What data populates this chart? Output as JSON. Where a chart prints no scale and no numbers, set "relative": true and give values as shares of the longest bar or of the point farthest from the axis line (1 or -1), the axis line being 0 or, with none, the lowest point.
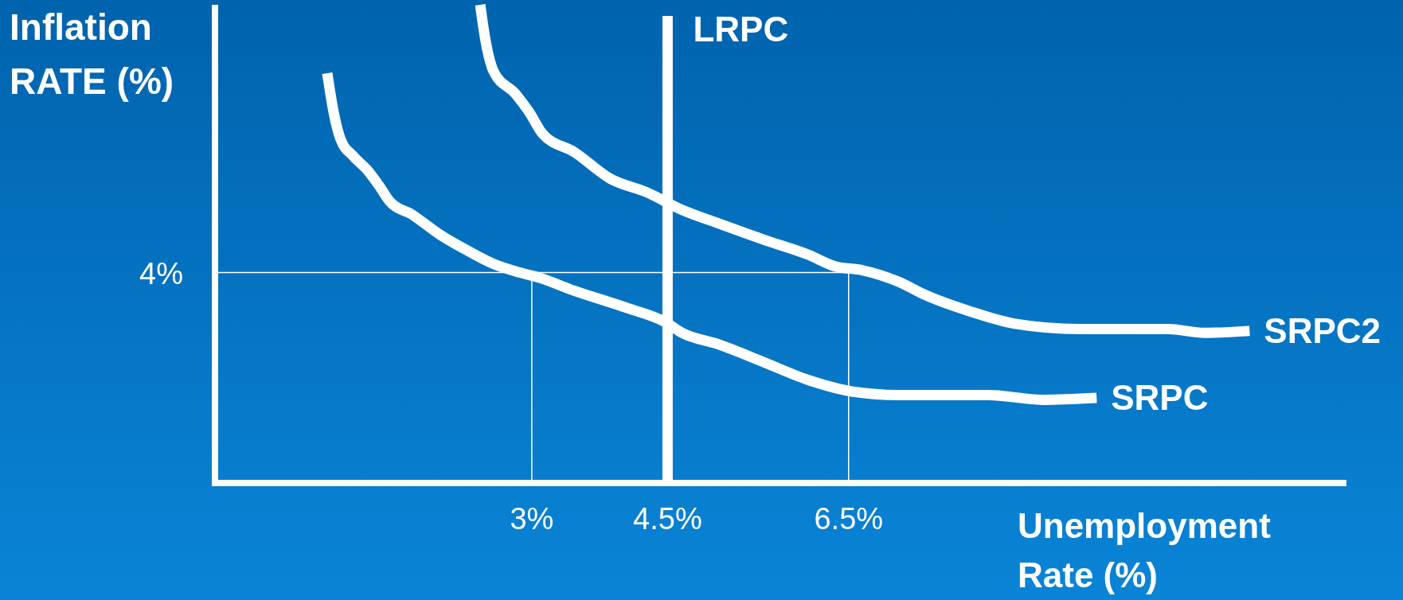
{
  "chart_data": {
    "type": "line",
    "relative": true,
    "xlabel": "Unemployment\nRate (%)",
    "ylabel": "Inflation\nRATE (%)",
    "xlim": [
      -0.5,
      12
    ],
    "xticks": [
      {
        "value": 3,
        "label": "3%"
      },
      {
        "value": 4.5,
        "label": "4.5%"
      },
      {
        "value": 6.5,
        "label": "6.5%"
      }
    ],
    "grid": false,
    "marker": "none",
    "annotations": [
      "4%"
    ],
    "line_style": "solid",
    "ref_lines": [
      {
        "axis": "y",
        "value": 0.44,
        "color": "#ffffff"
      },
      {
        "axis": "x",
        "value": 3,
        "color": "#ffffff"
      },
      {
        "axis": "x",
        "value": 6.5,
        "color": "#ffffff"
      },
      {
        "axis": "x",
        "value": 4.5,
        "label": "LRPC",
        "color": "#ffffff"
      }
    ],
    "series": [
      {
        "name": "SRPC",
        "color": "#ffffff",
        "x": [
          0.74,
          0.81,
          0.885,
          1.03,
          1.18,
          1.33,
          1.43,
          1.68,
          1.98,
          2.28,
          2.58,
          2.87,
          3.07,
          3.47,
          4.07,
          4.47,
          4.66,
          5.06,
          5.56,
          6.06,
          6.55,
          7.05,
          8.05,
          8.64,
          9.24
        ],
        "values": [
          0.857,
          0.776,
          0.72,
          0.683,
          0.655,
          0.617,
          0.589,
          0.561,
          0.52,
          0.487,
          0.458,
          0.44,
          0.43,
          0.402,
          0.365,
          0.337,
          0.314,
          0.29,
          0.253,
          0.215,
          0.191,
          0.184,
          0.184,
          0.174,
          0.178
        ]
      },
      {
        "name": "SRPC2",
        "color": "#ffffff",
        "x": [
          2.43,
          2.48,
          2.58,
          2.82,
          2.97,
          3.12,
          3.47,
          3.87,
          4.27,
          4.66,
          5.06,
          5.56,
          6.06,
          6.35,
          6.65,
          7.05,
          7.35,
          7.84,
          8.34,
          9.04,
          10.03,
          10.43,
          10.93
        ],
        "values": [
          1.0,
          0.935,
          0.86,
          0.814,
          0.776,
          0.73,
          0.692,
          0.636,
          0.608,
          0.571,
          0.543,
          0.509,
          0.477,
          0.453,
          0.445,
          0.421,
          0.393,
          0.359,
          0.333,
          0.322,
          0.322,
          0.314,
          0.318
        ]
      }
    ]
  }
}
